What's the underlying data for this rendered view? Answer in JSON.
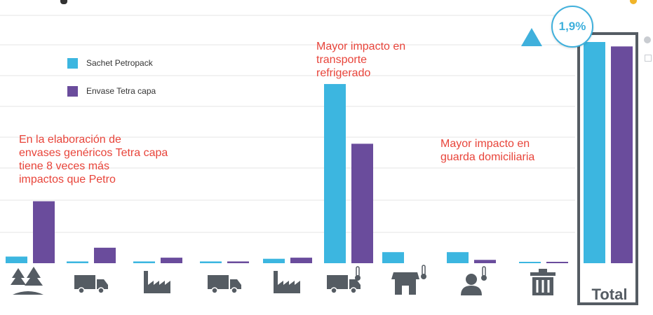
{
  "colors": {
    "petro": "#3cb6e0",
    "tetra": "#6a4c9c",
    "annotation": "#e8443a",
    "accent": "#3fb0dc",
    "frame": "#555c63",
    "grid": "#e6e6e6"
  },
  "legend": [
    {
      "label": "Sachet Petropack",
      "color": "#3cb6e0"
    },
    {
      "label": "Envase Tetra capa",
      "color": "#6a4c9c"
    }
  ],
  "annotations": {
    "tetra": "En la elaboración de\nenvases genéricos Tetra capa\ntiene 8 veces más\nimpactos que Petro",
    "transport": "Mayor impacto en\ntransporte\nrefrigerado",
    "storage": "Mayor impacto en\nguarda domiciliaria"
  },
  "total_label": "Total",
  "badge": "1,9%",
  "chart_data": {
    "type": "bar",
    "title": "",
    "xlabel": "",
    "ylabel": "",
    "ylim": [
      0,
      100
    ],
    "grid": true,
    "categories": [
      "tree-icon",
      "truck-icon",
      "factory-icon",
      "truck-icon",
      "factory-icon",
      "refrigerated-truck-icon",
      "store-thermometer-icon",
      "person-thermometer-icon",
      "trash-bin-icon",
      "Total"
    ],
    "series": [
      {
        "name": "Sachet Petropack",
        "values": [
          3,
          0.8,
          0.8,
          0.8,
          2,
          81,
          5,
          5,
          0.6,
          100
        ]
      },
      {
        "name": "Envase Tetra capa",
        "values": [
          28,
          7,
          2.5,
          0.8,
          2.5,
          54,
          0,
          1.5,
          0.6,
          98
        ]
      }
    ]
  }
}
